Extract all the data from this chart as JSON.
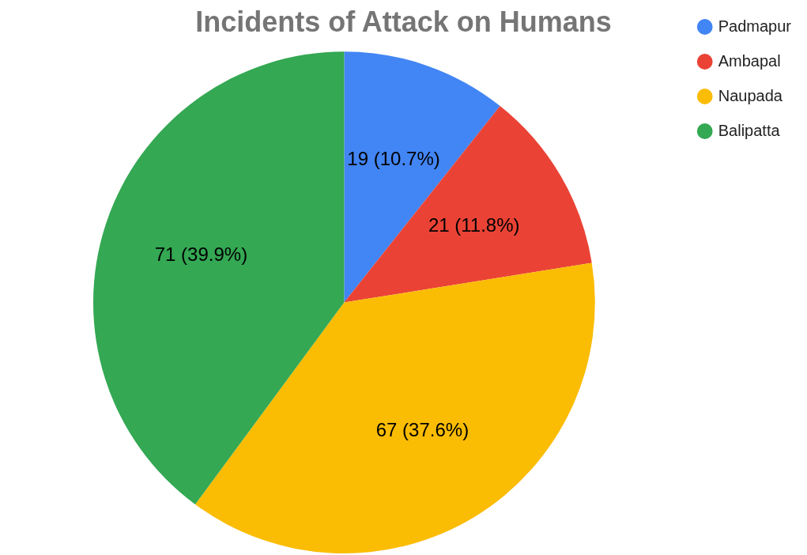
{
  "chart_data": {
    "type": "pie",
    "title": "Incidents of Attack on Humans",
    "categories": [
      "Padmapur",
      "Ambapal",
      "Naupada",
      "Balipatta"
    ],
    "values": [
      19,
      21,
      67,
      71
    ],
    "colors": [
      "#4285f4",
      "#ea4335",
      "#fbbc04",
      "#34a853"
    ],
    "value_labels": [
      "19 (10.7%)",
      "21 (11.8%)",
      "67 (37.6%)",
      "71 (39.9%)"
    ],
    "legend": "top right"
  }
}
